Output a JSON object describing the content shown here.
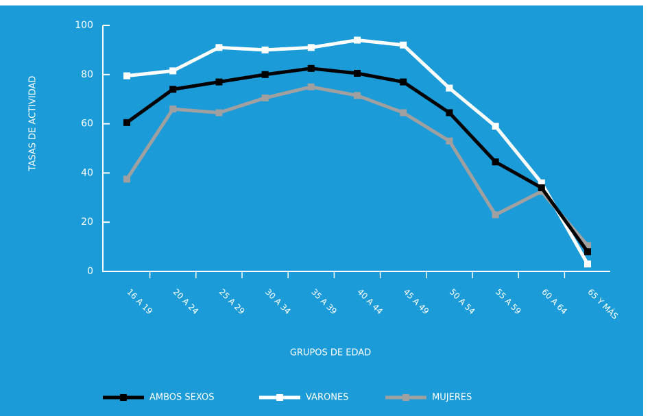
{
  "chart_data": {
    "type": "line",
    "ylabel": "TASAS DE ACTIVIDAD",
    "xlabel": "GRUPOS DE EDAD",
    "categories": [
      "16 A 19",
      "20 A 24",
      "25 A 29",
      "30 A 34",
      "35 A 39",
      "40 A 44",
      "45 A 49",
      "50 A 54",
      "55 A 59",
      "60 A 64",
      "65 Y MÁS"
    ],
    "series": [
      {
        "name": "AMBOS SEXOS",
        "color": "#000000",
        "values": [
          60.5,
          74,
          77,
          80,
          82.5,
          80.5,
          77,
          64.5,
          44.5,
          34,
          8
        ]
      },
      {
        "name": "VARONES",
        "color": "#ffffff",
        "values": [
          79.5,
          81.5,
          91,
          90,
          91,
          94,
          92,
          74.5,
          59,
          36,
          3
        ]
      },
      {
        "name": "MUJERES",
        "color": "#a0a0a0",
        "values": [
          37.5,
          66,
          64.5,
          70.5,
          75,
          71.5,
          64.5,
          53,
          23,
          32.5,
          10.5
        ]
      }
    ],
    "ylim": [
      0,
      100
    ],
    "yticks": [
      0,
      20,
      40,
      60,
      80,
      100
    ],
    "legend": "bottom"
  }
}
